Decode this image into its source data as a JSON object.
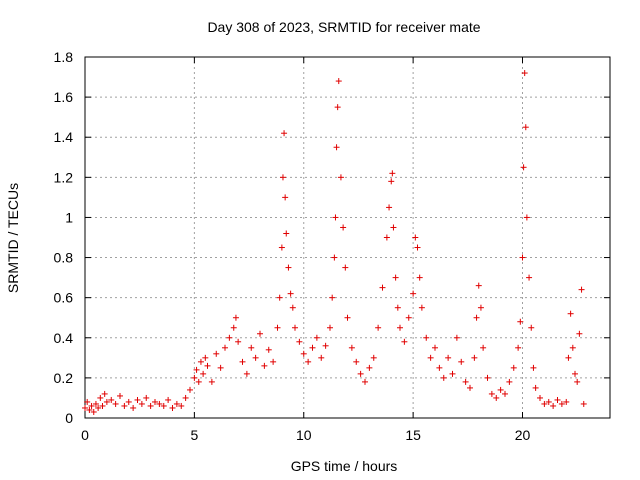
{
  "chart_data": {
    "type": "scatter",
    "title": "Day 308 of 2023, SRMTID for receiver mate",
    "xlabel": "GPS time / hours",
    "ylabel": "SRMTID / TECUs",
    "xlim": [
      0,
      24
    ],
    "ylim": [
      0,
      1.8
    ],
    "xticks": [
      0,
      5,
      10,
      15,
      20
    ],
    "xtick_labels": [
      "0",
      "5",
      "10",
      "15",
      "20"
    ],
    "yticks": [
      0,
      0.2,
      0.4,
      0.6,
      0.8,
      1.0,
      1.2,
      1.4,
      1.6,
      1.8
    ],
    "ytick_labels": [
      "0",
      "0.2",
      "0.4",
      "0.6",
      "0.8",
      "1",
      "1.2",
      "1.4",
      "1.6",
      "1.8"
    ],
    "grid": true,
    "marker": "plus",
    "color": "#e00000",
    "series": [
      {
        "name": "SRMTID",
        "x": [
          0.0,
          0.1,
          0.2,
          0.3,
          0.4,
          0.5,
          0.6,
          0.7,
          0.8,
          0.9,
          1.0,
          1.2,
          1.4,
          1.6,
          1.8,
          2.0,
          2.2,
          2.4,
          2.6,
          2.8,
          3.0,
          3.2,
          3.4,
          3.6,
          3.8,
          4.0,
          4.2,
          4.4,
          4.6,
          4.8,
          5.0,
          5.1,
          5.2,
          5.3,
          5.4,
          5.5,
          5.6,
          5.8,
          6.0,
          6.2,
          6.4,
          6.6,
          6.8,
          6.9,
          7.0,
          7.2,
          7.4,
          7.6,
          7.8,
          8.0,
          8.2,
          8.4,
          8.6,
          8.8,
          8.9,
          9.0,
          9.05,
          9.1,
          9.15,
          9.2,
          9.3,
          9.4,
          9.5,
          9.6,
          9.8,
          10.0,
          10.2,
          10.4,
          10.6,
          10.8,
          11.0,
          11.2,
          11.3,
          11.4,
          11.45,
          11.5,
          11.55,
          11.6,
          11.7,
          11.8,
          11.9,
          12.0,
          12.2,
          12.4,
          12.6,
          12.8,
          13.0,
          13.2,
          13.4,
          13.6,
          13.8,
          13.9,
          14.0,
          14.05,
          14.1,
          14.2,
          14.3,
          14.4,
          14.6,
          14.8,
          15.0,
          15.1,
          15.2,
          15.3,
          15.4,
          15.6,
          15.8,
          16.0,
          16.2,
          16.4,
          16.6,
          16.8,
          17.0,
          17.2,
          17.4,
          17.6,
          17.8,
          17.9,
          18.0,
          18.1,
          18.2,
          18.4,
          18.6,
          18.8,
          19.0,
          19.2,
          19.4,
          19.6,
          19.8,
          19.9,
          20.0,
          20.05,
          20.1,
          20.15,
          20.2,
          20.3,
          20.4,
          20.5,
          20.6,
          20.8,
          21.0,
          21.2,
          21.4,
          21.6,
          21.8,
          22.0,
          22.1,
          22.2,
          22.3,
          22.4,
          22.5,
          22.6,
          22.7,
          22.8
        ],
        "y": [
          0.05,
          0.08,
          0.04,
          0.06,
          0.03,
          0.07,
          0.05,
          0.1,
          0.06,
          0.12,
          0.08,
          0.09,
          0.07,
          0.11,
          0.06,
          0.08,
          0.05,
          0.09,
          0.07,
          0.1,
          0.06,
          0.08,
          0.07,
          0.06,
          0.09,
          0.05,
          0.07,
          0.06,
          0.1,
          0.14,
          0.2,
          0.24,
          0.18,
          0.28,
          0.22,
          0.3,
          0.26,
          0.18,
          0.32,
          0.25,
          0.35,
          0.4,
          0.45,
          0.5,
          0.38,
          0.28,
          0.22,
          0.35,
          0.3,
          0.42,
          0.26,
          0.34,
          0.28,
          0.45,
          0.6,
          0.85,
          1.2,
          1.42,
          1.1,
          0.92,
          0.75,
          0.62,
          0.55,
          0.45,
          0.38,
          0.32,
          0.28,
          0.35,
          0.4,
          0.3,
          0.36,
          0.45,
          0.6,
          0.8,
          1.0,
          1.35,
          1.55,
          1.68,
          1.2,
          0.95,
          0.75,
          0.5,
          0.35,
          0.28,
          0.22,
          0.18,
          0.25,
          0.3,
          0.45,
          0.65,
          0.9,
          1.05,
          1.18,
          1.22,
          0.95,
          0.7,
          0.55,
          0.45,
          0.38,
          0.5,
          0.62,
          0.9,
          0.85,
          0.7,
          0.55,
          0.4,
          0.3,
          0.35,
          0.25,
          0.2,
          0.3,
          0.22,
          0.4,
          0.28,
          0.18,
          0.15,
          0.3,
          0.5,
          0.66,
          0.55,
          0.35,
          0.2,
          0.12,
          0.1,
          0.14,
          0.12,
          0.18,
          0.25,
          0.35,
          0.48,
          0.8,
          1.25,
          1.72,
          1.45,
          1.0,
          0.7,
          0.45,
          0.25,
          0.15,
          0.1,
          0.07,
          0.08,
          0.06,
          0.09,
          0.07,
          0.08,
          0.3,
          0.52,
          0.35,
          0.22,
          0.18,
          0.42,
          0.64,
          0.07
        ]
      }
    ]
  }
}
